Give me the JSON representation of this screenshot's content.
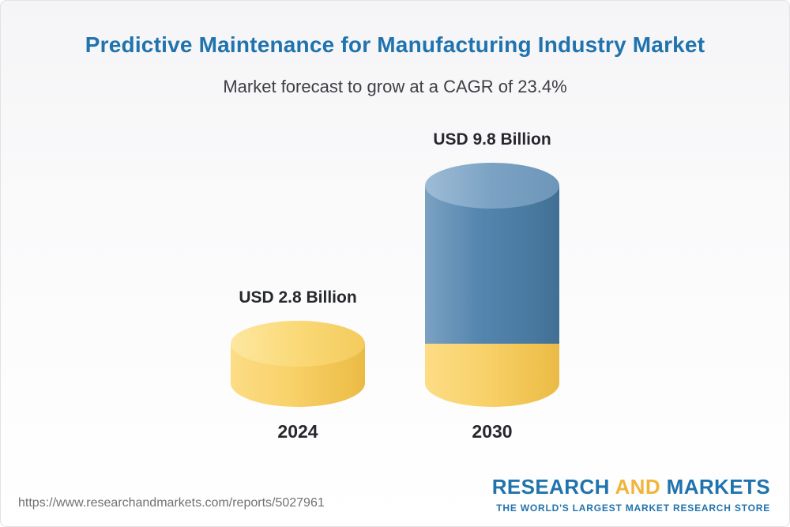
{
  "header": {
    "title": "Predictive Maintenance for Manufacturing Industry Market",
    "subtitle": "Market forecast to grow at a CAGR of 23.4%"
  },
  "chart_data": {
    "type": "bar",
    "style": "3d-cylinder",
    "categories": [
      "2024",
      "2030"
    ],
    "values": [
      2.8,
      9.8
    ],
    "value_labels": [
      "USD 2.8 Billion",
      "USD 9.8 Billion"
    ],
    "unit": "USD Billion",
    "cagr_percent": 23.4,
    "title": "Predictive Maintenance for Manufacturing Industry Market",
    "subtitle": "Market forecast to grow at a CAGR of 23.4%",
    "bar_colors": [
      "#f8d169",
      "#5586af"
    ],
    "ylim": [
      0,
      9.8
    ],
    "legend": "none",
    "grid": "off",
    "note": "2030 cylinder shows the 2024 base value as a yellow bottom segment"
  },
  "footer": {
    "source_url": "https://www.researchandmarkets.com/reports/5027961",
    "logo": {
      "part1": "RESEARCH",
      "part2": "AND",
      "part3": "MARKETS",
      "tagline": "THE WORLD'S LARGEST MARKET RESEARCH STORE"
    }
  },
  "colors": {
    "title_blue": "#2173ad",
    "logo_yellow": "#f1b53c",
    "text_dark": "#26282e",
    "url_gray": "#717176"
  }
}
